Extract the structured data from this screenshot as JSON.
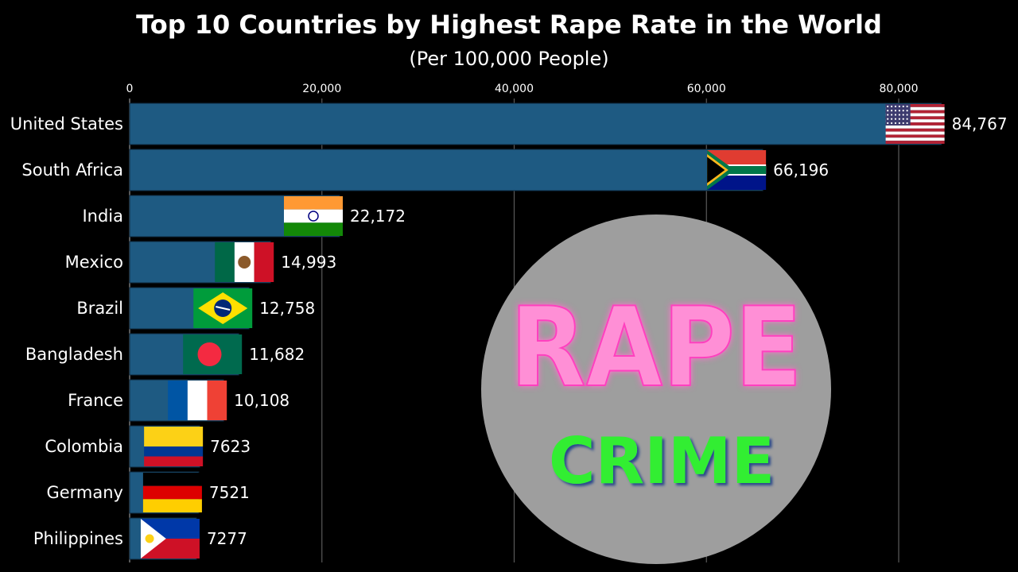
{
  "chart_data": {
    "type": "bar",
    "title": "Top 10 Countries by Highest Rape Rate in the World",
    "subtitle": "(Per 100,000 People)",
    "categories": [
      "United States",
      "South Africa",
      "India",
      "Mexico",
      "Brazil",
      "Bangladesh",
      "France",
      "Colombia",
      "Germany",
      "Philippines"
    ],
    "values": [
      84767,
      66196,
      22172,
      14993,
      12758,
      11682,
      10108,
      7623,
      7521,
      7277
    ],
    "value_labels": [
      "84,767",
      "66,196",
      "22,172",
      "14,993",
      "12,758",
      "11,682",
      "10,108",
      "7623",
      "7521",
      "7277"
    ],
    "flag_icons": [
      "flag-usa-icon",
      "flag-south-africa-icon",
      "flag-india-icon",
      "flag-mexico-icon",
      "flag-brazil-icon",
      "flag-bangladesh-icon",
      "flag-france-icon",
      "flag-colombia-icon",
      "flag-germany-icon",
      "flag-philippines-icon"
    ],
    "xaxis_ticks": [
      0,
      20000,
      40000,
      60000,
      80000
    ],
    "xaxis_tick_labels": [
      "0",
      "20,000",
      "40,000",
      "60,000",
      "80,000"
    ],
    "xlim": [
      0,
      85000
    ],
    "orientation": "horizontal",
    "xaxis_position": "top",
    "grid": true,
    "bar_color": "#1e5a82"
  },
  "overlay": {
    "word1": "RAPE",
    "word2": "CRIME",
    "circle_color": "#9e9e9e",
    "word1_color": "#ff8fd6",
    "word2_color": "#33ee33"
  }
}
